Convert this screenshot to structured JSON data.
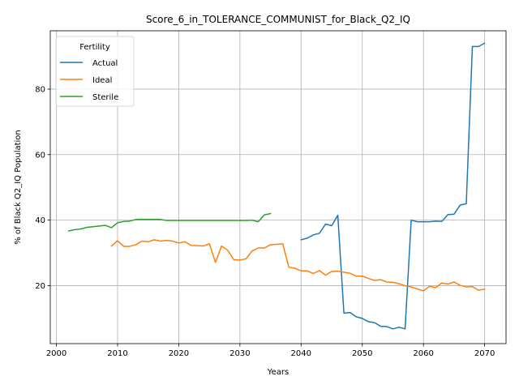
{
  "chart_data": {
    "type": "line",
    "title": "Score_6_in_TOLERANCE_COMMUNIST_for_Black_Q2_IQ",
    "xlabel": "Years",
    "ylabel": "% of Black Q2_IQ Population",
    "xlim": [
      1999,
      2073.5
    ],
    "ylim": [
      2.3,
      97.8
    ],
    "xticks": [
      2000,
      2010,
      2020,
      2030,
      2040,
      2050,
      2060,
      2070
    ],
    "yticks": [
      20,
      40,
      60,
      80
    ],
    "grid": true,
    "legend": {
      "title": "Fertility",
      "placement": "top-left"
    },
    "series": [
      {
        "name": "Actual",
        "color": "#1f77b4",
        "points": [
          [
            2040,
            34.0
          ],
          [
            2041,
            34.5
          ],
          [
            2042,
            35.5
          ],
          [
            2043,
            36.0
          ],
          [
            2044,
            38.8
          ],
          [
            2045,
            38.3
          ],
          [
            2046,
            41.5
          ],
          [
            2047,
            11.6
          ],
          [
            2048,
            11.8
          ],
          [
            2049,
            10.5
          ],
          [
            2050,
            10.0
          ],
          [
            2051,
            9.0
          ],
          [
            2052,
            8.7
          ],
          [
            2053,
            7.6
          ],
          [
            2054,
            7.5
          ],
          [
            2055,
            6.8
          ],
          [
            2056,
            7.3
          ],
          [
            2057,
            6.8
          ],
          [
            2058,
            40.0
          ],
          [
            2059,
            39.5
          ],
          [
            2060,
            39.5
          ],
          [
            2061,
            39.5
          ],
          [
            2062,
            39.7
          ],
          [
            2063,
            39.6
          ],
          [
            2064,
            41.7
          ],
          [
            2065,
            41.8
          ],
          [
            2066,
            44.6
          ],
          [
            2067,
            45.0
          ],
          [
            2068,
            93.0
          ],
          [
            2069,
            93.0
          ],
          [
            2070,
            94.0
          ]
        ]
      },
      {
        "name": "Ideal",
        "color": "#ff7f0e",
        "points": [
          [
            2009,
            32.1
          ],
          [
            2010,
            33.7
          ],
          [
            2011,
            32.0
          ],
          [
            2012,
            32.0
          ],
          [
            2013,
            32.5
          ],
          [
            2014,
            33.6
          ],
          [
            2015,
            33.4
          ],
          [
            2016,
            34.0
          ],
          [
            2017,
            33.6
          ],
          [
            2018,
            33.8
          ],
          [
            2019,
            33.6
          ],
          [
            2020,
            33.0
          ],
          [
            2021,
            33.4
          ],
          [
            2022,
            32.3
          ],
          [
            2023,
            32.2
          ],
          [
            2024,
            32.1
          ],
          [
            2025,
            32.8
          ],
          [
            2026,
            27.1
          ],
          [
            2027,
            32.1
          ],
          [
            2028,
            30.8
          ],
          [
            2029,
            27.9
          ],
          [
            2030,
            27.8
          ],
          [
            2031,
            28.2
          ],
          [
            2032,
            30.6
          ],
          [
            2033,
            31.5
          ],
          [
            2034,
            31.5
          ],
          [
            2035,
            32.5
          ],
          [
            2036,
            32.6
          ],
          [
            2037,
            32.8
          ],
          [
            2038,
            25.6
          ],
          [
            2039,
            25.3
          ],
          [
            2040,
            24.5
          ],
          [
            2041,
            24.5
          ],
          [
            2042,
            23.7
          ],
          [
            2043,
            24.6
          ],
          [
            2044,
            23.2
          ],
          [
            2045,
            24.3
          ],
          [
            2046,
            24.4
          ],
          [
            2047,
            24.1
          ],
          [
            2048,
            23.8
          ],
          [
            2049,
            22.9
          ],
          [
            2050,
            22.9
          ],
          [
            2051,
            22.2
          ],
          [
            2052,
            21.6
          ],
          [
            2053,
            21.8
          ],
          [
            2054,
            21.1
          ],
          [
            2055,
            21.0
          ],
          [
            2056,
            20.6
          ],
          [
            2057,
            20.0
          ],
          [
            2058,
            19.6
          ],
          [
            2059,
            19.0
          ],
          [
            2060,
            18.4
          ],
          [
            2061,
            19.8
          ],
          [
            2062,
            19.4
          ],
          [
            2063,
            20.8
          ],
          [
            2064,
            20.5
          ],
          [
            2065,
            21.1
          ],
          [
            2066,
            20.1
          ],
          [
            2067,
            19.6
          ],
          [
            2068,
            19.7
          ],
          [
            2069,
            18.6
          ],
          [
            2070,
            18.9
          ]
        ]
      },
      {
        "name": "Sterile",
        "color": "#2ca02c",
        "points": [
          [
            2002,
            36.7
          ],
          [
            2003,
            37.1
          ],
          [
            2004,
            37.3
          ],
          [
            2005,
            37.8
          ],
          [
            2006,
            38.0
          ],
          [
            2007,
            38.2
          ],
          [
            2008,
            38.4
          ],
          [
            2009,
            37.7
          ],
          [
            2010,
            39.2
          ],
          [
            2011,
            39.6
          ],
          [
            2012,
            39.7
          ],
          [
            2013,
            40.2
          ],
          [
            2014,
            40.2
          ],
          [
            2015,
            40.2
          ],
          [
            2016,
            40.2
          ],
          [
            2017,
            40.2
          ],
          [
            2018,
            39.9
          ],
          [
            2019,
            39.9
          ],
          [
            2020,
            39.9
          ],
          [
            2021,
            39.9
          ],
          [
            2022,
            39.9
          ],
          [
            2023,
            39.9
          ],
          [
            2024,
            39.9
          ],
          [
            2025,
            39.9
          ],
          [
            2026,
            39.9
          ],
          [
            2027,
            39.9
          ],
          [
            2028,
            39.9
          ],
          [
            2029,
            39.9
          ],
          [
            2030,
            39.9
          ],
          [
            2031,
            39.9
          ],
          [
            2032,
            40.0
          ],
          [
            2033,
            39.5
          ],
          [
            2034,
            41.6
          ],
          [
            2035,
            42.0
          ]
        ]
      }
    ]
  }
}
